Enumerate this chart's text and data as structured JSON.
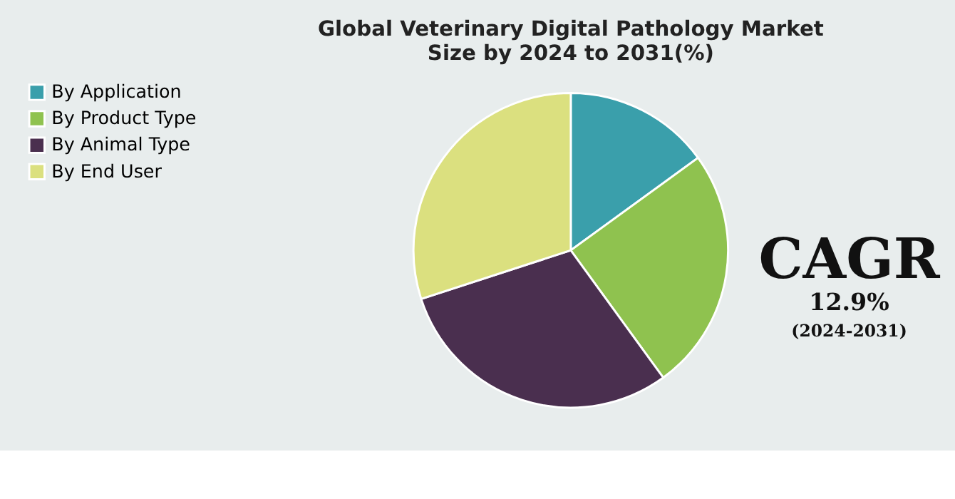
{
  "chart_data": {
    "type": "pie",
    "title": "Global Veterinary Digital Pathology Market Size by 2024 to 2031(%)",
    "categories": [
      "By Application",
      "By Product Type",
      "By Animal Type",
      "By End User"
    ],
    "values": [
      15,
      25,
      30,
      30
    ],
    "colors": [
      "#3a9fab",
      "#8fc24f",
      "#4a2f4f",
      "#dbe07f"
    ],
    "legend": "left",
    "annotations": [
      "CAGR",
      "12.9%",
      "(2024-2031)"
    ]
  }
}
